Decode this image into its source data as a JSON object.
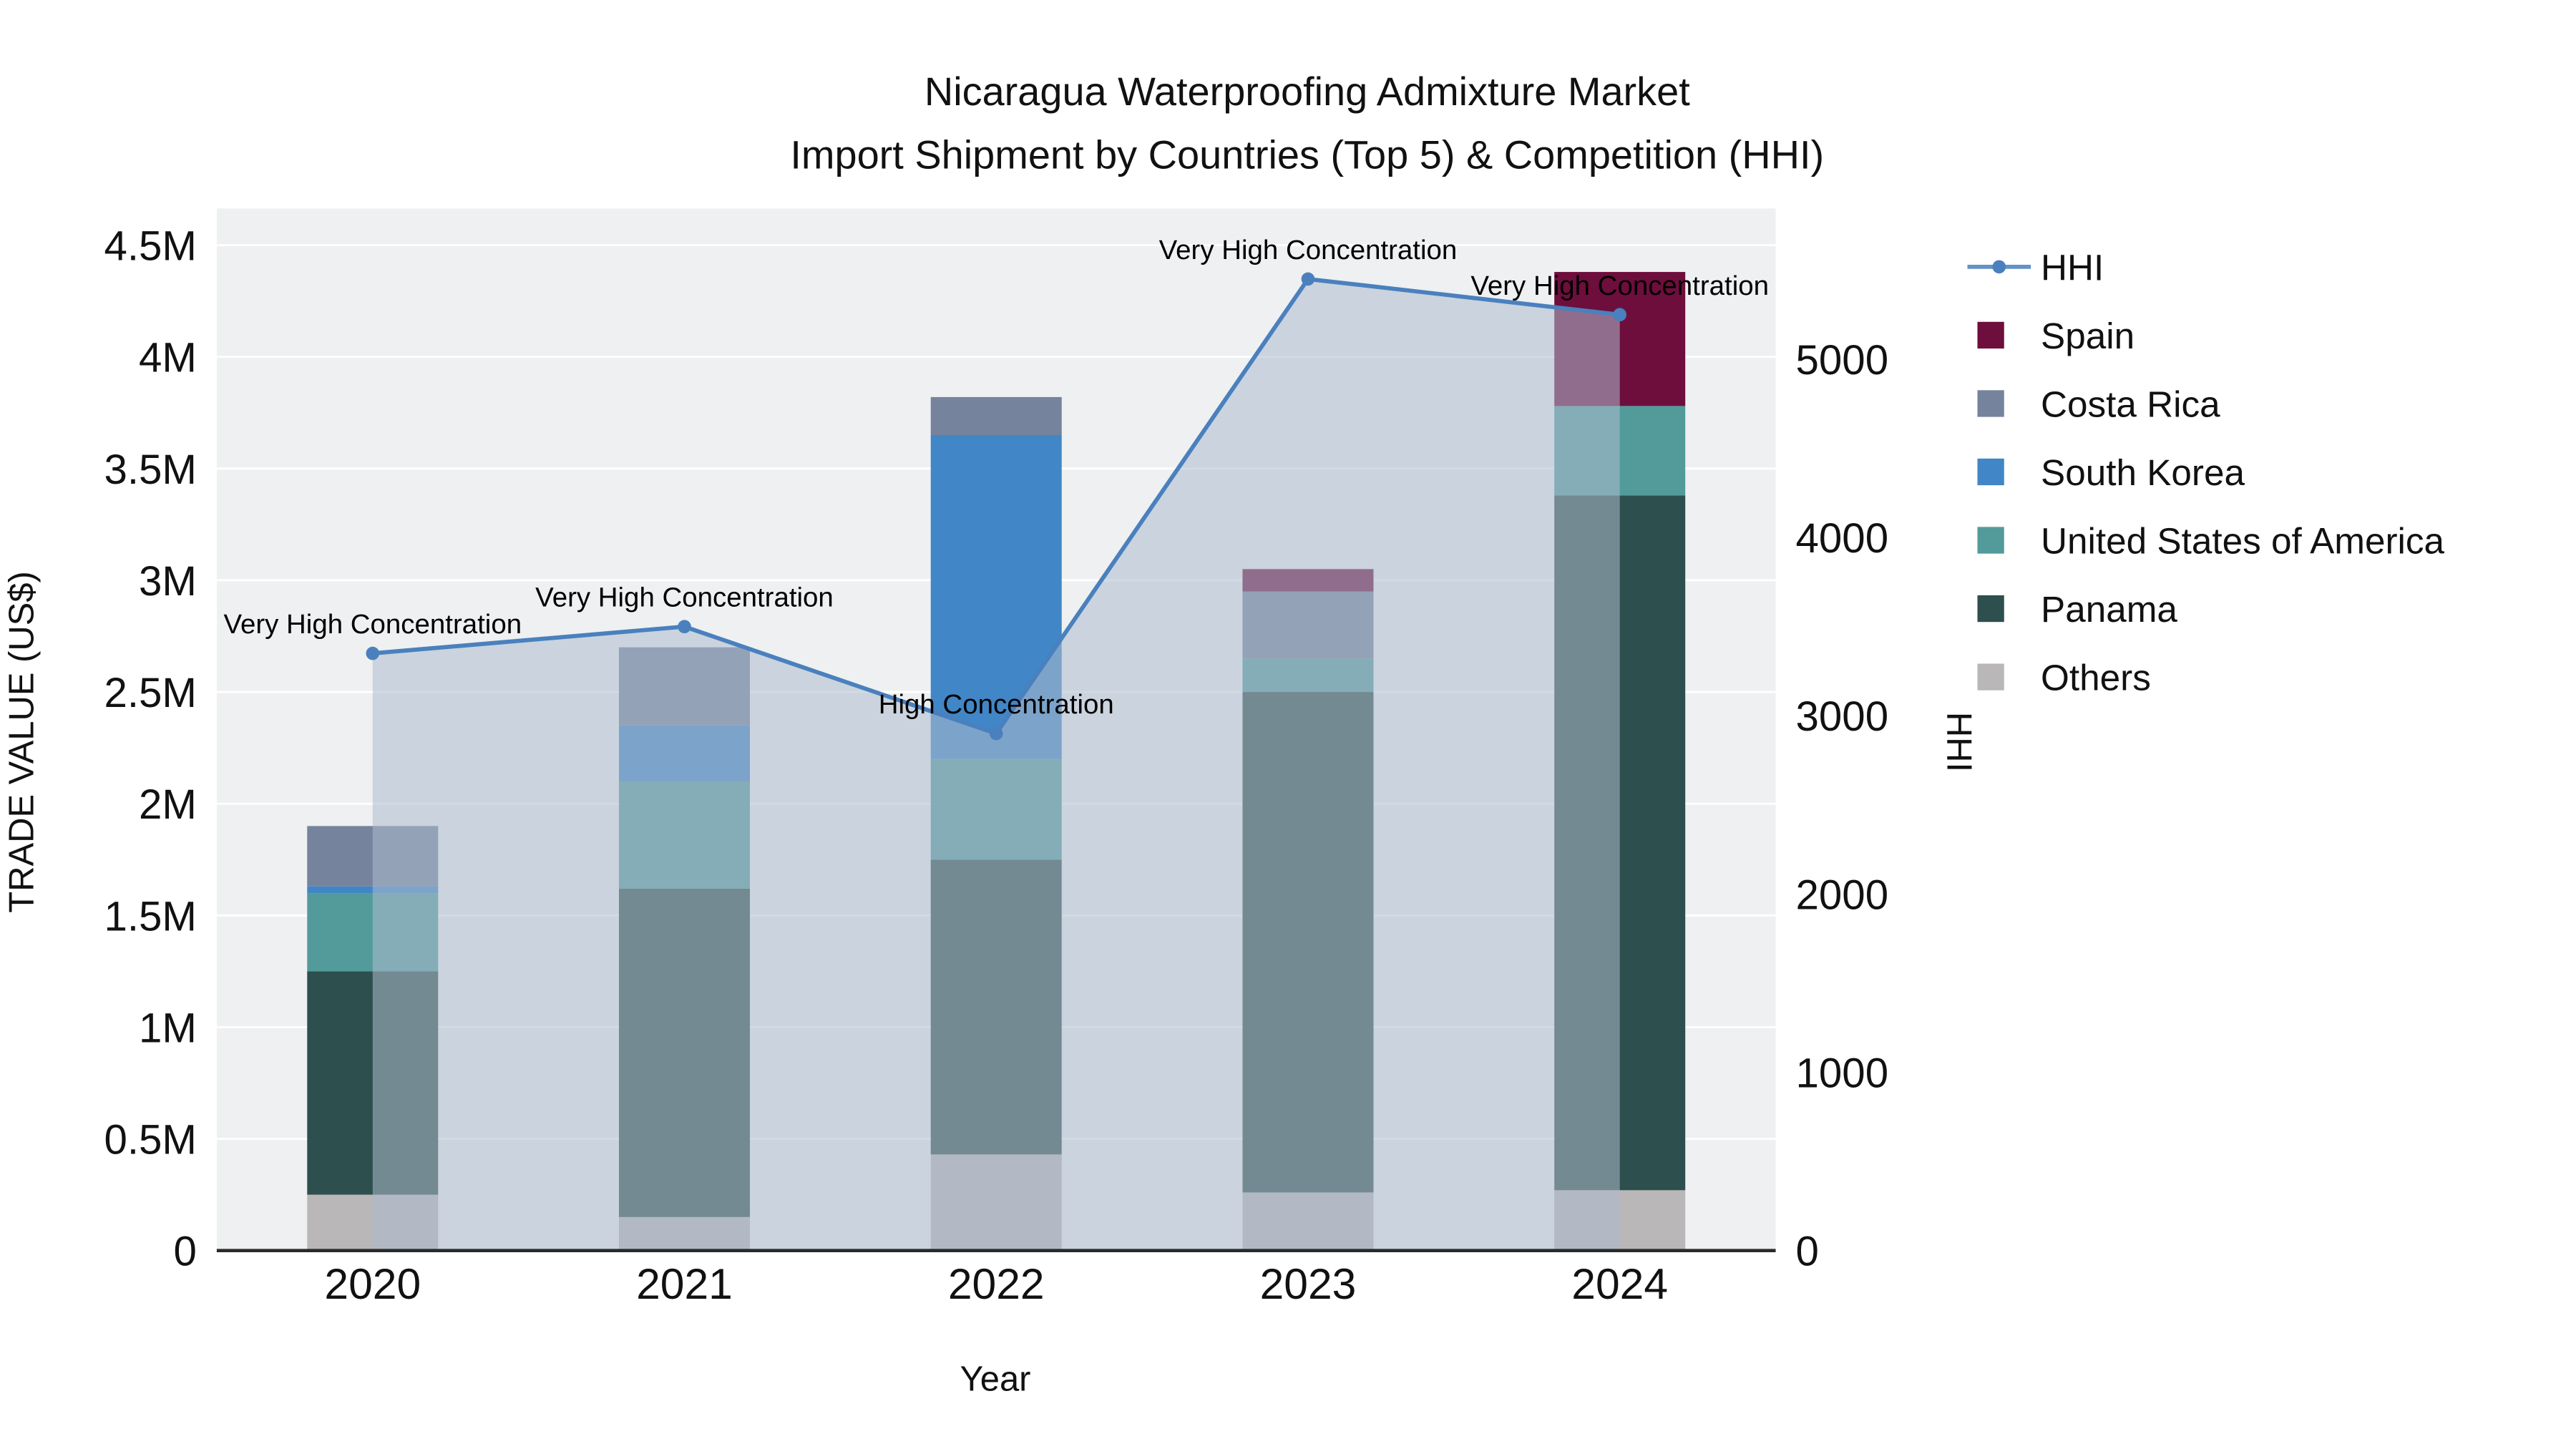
{
  "title": {
    "line1": "Nicaragua Waterproofing Admixture Market",
    "line2": "Import Shipment by Countries (Top 5) & Competition (HHI)"
  },
  "legend": {
    "order": [
      "HHI",
      "Spain",
      "Costa Rica",
      "South Korea",
      "United States of America",
      "Panama",
      "Others"
    ]
  },
  "chart_data": {
    "type": "stacked_bar_with_line",
    "x_title": "Year",
    "x": [
      "2020",
      "2021",
      "2022",
      "2023",
      "2024"
    ],
    "y_left": {
      "title": "TRADE VALUE (US$)",
      "max": 4500000,
      "tick_values": [
        0,
        500000,
        1000000,
        1500000,
        2000000,
        2500000,
        3000000,
        3500000,
        4000000,
        4500000
      ],
      "tick_labels": [
        "0",
        "0.5M",
        "1M",
        "1.5M",
        "2M",
        "2.5M",
        "3M",
        "3.5M",
        "4M",
        "4.5M"
      ]
    },
    "y_right": {
      "title": "HHI",
      "max": 5640,
      "tick_values": [
        0,
        1000,
        2000,
        3000,
        4000,
        5000
      ],
      "tick_labels": [
        "0",
        "1000",
        "2000",
        "3000",
        "4000",
        "5000"
      ]
    },
    "bar_series_bottom_to_top": [
      {
        "name": "Others",
        "color": "#b9b7b8",
        "values_usd": [
          250000,
          150000,
          430000,
          260000,
          270000
        ]
      },
      {
        "name": "Panama",
        "color": "#2d4f4d",
        "values_usd": [
          1000000,
          1470000,
          1320000,
          2240000,
          3110000
        ]
      },
      {
        "name": "United States of America",
        "color": "#539b9b",
        "values_usd": [
          350000,
          480000,
          450000,
          150000,
          400000
        ]
      },
      {
        "name": "South Korea",
        "color": "#4186c6",
        "values_usd": [
          30000,
          250000,
          1450000,
          0,
          0
        ]
      },
      {
        "name": "Costa Rica",
        "color": "#76839d",
        "values_usd": [
          270000,
          350000,
          170000,
          300000,
          0
        ]
      },
      {
        "name": "Spain",
        "color": "#6e0e3d",
        "values_usd": [
          0,
          0,
          0,
          100000,
          600000
        ]
      }
    ],
    "line_series": {
      "name": "HHI",
      "color": "#4a80bd",
      "fill_color": "rgba(173,187,206,0.55)",
      "values": [
        3350,
        3500,
        2900,
        5450,
        5250
      ],
      "annotations": [
        "Very High Concentration",
        "Very High Concentration",
        "High Concentration",
        "Very High Concentration",
        "Very High Concentration"
      ]
    }
  }
}
